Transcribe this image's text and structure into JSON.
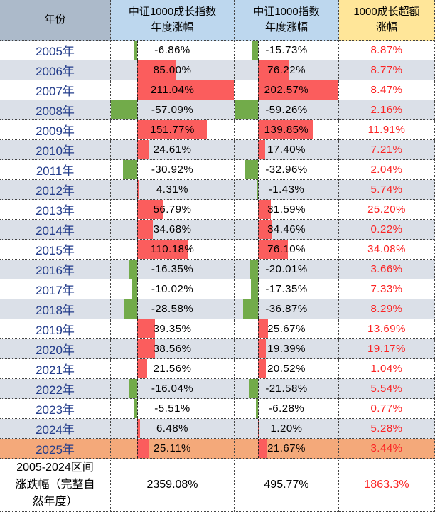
{
  "colors": {
    "header_year_bg": "#ACBACA",
    "header_index_bg": "#BDD7EE",
    "header_excess_bg": "#FFE699",
    "row_alt_bg": "#DBE0E8",
    "row_2025_bg": "#F4A97A",
    "positive_bar": "#FB5D5D",
    "negative_bar": "#72AB4A",
    "year_text": "#223C8B",
    "excess_text": "#FB2323"
  },
  "header": {
    "year": "年份",
    "growth": "中证1000成长指数\n年度涨幅",
    "index": "中证1000指数\n年度涨幅",
    "excess": "1000成长超额\n涨幅"
  },
  "rows": [
    {
      "year": "2005年",
      "growth": -6.86,
      "index": -15.73,
      "excess": 8.87
    },
    {
      "year": "2006年",
      "growth": 85.0,
      "index": 76.22,
      "excess": 8.77
    },
    {
      "year": "2007年",
      "growth": 211.04,
      "index": 202.57,
      "excess": 8.47
    },
    {
      "year": "2008年",
      "growth": -57.09,
      "index": -59.26,
      "excess": 2.16
    },
    {
      "year": "2009年",
      "growth": 151.77,
      "index": 139.85,
      "excess": 11.91
    },
    {
      "year": "2010年",
      "growth": 24.61,
      "index": 17.4,
      "excess": 7.21
    },
    {
      "year": "2011年",
      "growth": -30.92,
      "index": -32.96,
      "excess": 2.04
    },
    {
      "year": "2012年",
      "growth": 4.31,
      "index": -1.43,
      "excess": 5.74
    },
    {
      "year": "2013年",
      "growth": 56.79,
      "index": 31.59,
      "excess": 25.2
    },
    {
      "year": "2014年",
      "growth": 34.68,
      "index": 34.46,
      "excess": 0.22
    },
    {
      "year": "2015年",
      "growth": 110.18,
      "index": 76.1,
      "excess": 34.08
    },
    {
      "year": "2016年",
      "growth": -16.35,
      "index": -20.01,
      "excess": 3.66
    },
    {
      "year": "2017年",
      "growth": -10.02,
      "index": -17.35,
      "excess": 7.33
    },
    {
      "year": "2018年",
      "growth": -28.58,
      "index": -36.87,
      "excess": 8.29
    },
    {
      "year": "2019年",
      "growth": 39.35,
      "index": 25.67,
      "excess": 13.69
    },
    {
      "year": "2020年",
      "growth": 38.56,
      "index": 19.39,
      "excess": 19.17
    },
    {
      "year": "2021年",
      "growth": 21.56,
      "index": 20.52,
      "excess": 1.04
    },
    {
      "year": "2022年",
      "growth": -16.04,
      "index": -21.58,
      "excess": 5.54
    },
    {
      "year": "2023年",
      "growth": -5.51,
      "index": -6.28,
      "excess": 0.77
    },
    {
      "year": "2024年",
      "growth": 6.48,
      "index": 1.2,
      "excess": 5.28
    },
    {
      "year": "2025年",
      "growth": 25.11,
      "index": 21.67,
      "excess": 3.44
    }
  ],
  "summary": {
    "label": "2005-2024区间\n涨跌幅（完整自\n然年度）",
    "growth": "2359.08%",
    "index": "495.77%",
    "excess": "1863.3%"
  },
  "chart_data": {
    "type": "table",
    "title": "中证1000成长指数 vs 中证1000指数 年度涨幅",
    "categories": [
      "2005年",
      "2006年",
      "2007年",
      "2008年",
      "2009年",
      "2010年",
      "2011年",
      "2012年",
      "2013年",
      "2014年",
      "2015年",
      "2016年",
      "2017年",
      "2018年",
      "2019年",
      "2020年",
      "2021年",
      "2022年",
      "2023年",
      "2024年",
      "2025年"
    ],
    "series": [
      {
        "name": "中证1000成长指数年度涨幅",
        "unit": "%",
        "values": [
          -6.86,
          85.0,
          211.04,
          -57.09,
          151.77,
          24.61,
          -30.92,
          4.31,
          56.79,
          34.68,
          110.18,
          -16.35,
          -10.02,
          -28.58,
          39.35,
          38.56,
          21.56,
          -16.04,
          -5.51,
          6.48,
          25.11
        ]
      },
      {
        "name": "中证1000指数年度涨幅",
        "unit": "%",
        "values": [
          -15.73,
          76.22,
          202.57,
          -59.26,
          139.85,
          17.4,
          -32.96,
          -1.43,
          31.59,
          34.46,
          76.1,
          -20.01,
          -17.35,
          -36.87,
          25.67,
          19.39,
          20.52,
          -21.58,
          -6.28,
          1.2,
          21.67
        ]
      },
      {
        "name": "1000成长超额涨幅",
        "unit": "%",
        "values": [
          8.87,
          8.77,
          8.47,
          2.16,
          11.91,
          7.21,
          2.04,
          5.74,
          25.2,
          0.22,
          34.08,
          3.66,
          7.33,
          8.29,
          13.69,
          19.17,
          1.04,
          5.54,
          0.77,
          5.28,
          3.44
        ]
      }
    ],
    "summary_row": {
      "label": "2005-2024区间涨跌幅（完整自然年度）",
      "中证1000成长指数": "2359.08%",
      "中证1000指数": "495.77%",
      "1000成长超额涨幅": "1863.3%"
    },
    "notes": "数据条：正值红色向右，负值绿色向左，虚线为零轴；2025年行为橙色底纹"
  }
}
